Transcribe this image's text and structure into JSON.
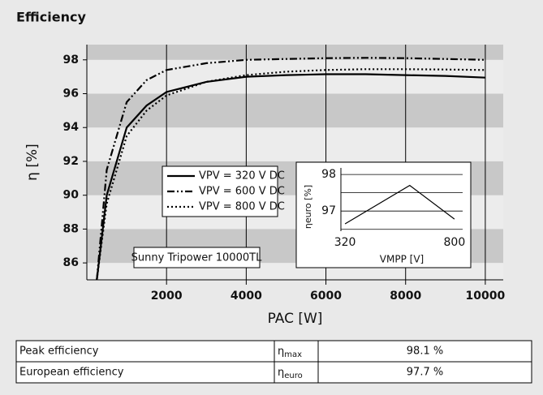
{
  "title": "Efficiency",
  "chart_data": [
    {
      "type": "line",
      "x": [
        250,
        500,
        1000,
        1500,
        2000,
        3000,
        4000,
        5000,
        6000,
        7000,
        8000,
        9000,
        10000
      ],
      "series": [
        {
          "name": "VPV = 320 V DC",
          "color": "#000000",
          "dash": "solid",
          "values": [
            85,
            90,
            94,
            95.3,
            96.1,
            96.7,
            97.0,
            97.1,
            97.15,
            97.15,
            97.1,
            97.05,
            96.95
          ]
        },
        {
          "name": "VPV = 600 V DC",
          "color": "#000000",
          "dash": "dashdot",
          "values": [
            85,
            91.5,
            95.5,
            96.8,
            97.4,
            97.8,
            98.0,
            98.05,
            98.1,
            98.12,
            98.1,
            98.05,
            98.0
          ]
        },
        {
          "name": "VPV = 800 V DC",
          "color": "#000000",
          "dash": "dotted",
          "values": [
            85,
            89.5,
            93.5,
            95.0,
            95.9,
            96.7,
            97.1,
            97.3,
            97.4,
            97.45,
            97.45,
            97.43,
            97.4
          ]
        }
      ],
      "xlabel": "PAC [W]",
      "ylabel": "η [%]",
      "xlim": [
        0,
        10450
      ],
      "ylim": [
        85,
        98.9
      ],
      "xticks": [
        2000,
        4000,
        6000,
        8000,
        10000
      ],
      "yticks": [
        86,
        88,
        90,
        92,
        94,
        96,
        98
      ],
      "annotation": "Sunny Tripower 10000TL"
    },
    {
      "type": "line",
      "x": [
        320,
        604,
        800
      ],
      "series": [
        {
          "color": "#000000",
          "dash": "solid",
          "values": [
            96.65,
            97.7,
            96.78
          ]
        }
      ],
      "xlabel": "VMPP [V]",
      "ylabel": "ηeuro [%]",
      "xlim": [
        302,
        836
      ],
      "ylim": [
        96.45,
        98.18
      ],
      "xticks": [
        320,
        800
      ],
      "yticks": [
        97,
        98
      ],
      "grid_lines": [
        96.5,
        97,
        97.5,
        98
      ]
    }
  ],
  "table": {
    "rows": [
      {
        "label": "Peak efficiency",
        "symbol": "η",
        "subscript": "max",
        "value": "98.1 %"
      },
      {
        "label": "European efficiency",
        "symbol": "η",
        "subscript": "euro",
        "value": "97.7 %"
      }
    ]
  }
}
